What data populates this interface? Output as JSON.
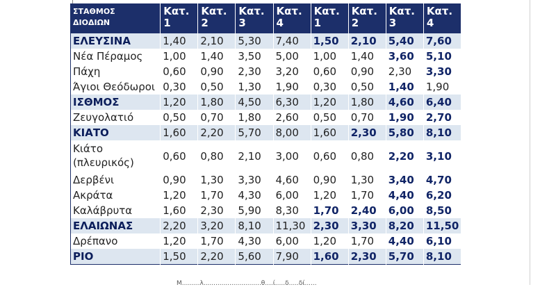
{
  "header": {
    "station_line1": "ΣΤΑΘΜΟΣ",
    "station_line2": "ΔΙΟΔΙΩΝ",
    "categories": [
      {
        "l1": "Κατ.",
        "l2": "1"
      },
      {
        "l1": "Κατ.",
        "l2": "2"
      },
      {
        "l1": "Κατ.",
        "l2": "3"
      },
      {
        "l1": "Κατ.",
        "l2": "4"
      },
      {
        "l1": "Κατ.",
        "l2": "1"
      },
      {
        "l1": "Κατ.",
        "l2": "2"
      },
      {
        "l1": "Κατ.",
        "l2": "3"
      },
      {
        "l1": "Κατ.",
        "l2": "4"
      }
    ]
  },
  "rows": [
    {
      "name": "ΕΛΕΥΣΙΝΑ",
      "major": true,
      "values": [
        "1,40",
        "2,10",
        "5,30",
        "7,40",
        "1,50",
        "2,10",
        "5,40",
        "7,60"
      ],
      "bold": [
        false,
        false,
        false,
        false,
        true,
        true,
        true,
        true
      ]
    },
    {
      "name": "Νέα Πέραμος",
      "major": false,
      "values": [
        "1,00",
        "1,40",
        "3,50",
        "5,00",
        "1,00",
        "1,40",
        "3,60",
        "5,10"
      ],
      "bold": [
        false,
        false,
        false,
        false,
        false,
        false,
        true,
        true
      ]
    },
    {
      "name": "Πάχη",
      "major": false,
      "values": [
        "0,60",
        "0,90",
        "2,30",
        "3,20",
        "0,60",
        "0,90",
        "2,30",
        "3,30"
      ],
      "bold": [
        false,
        false,
        false,
        false,
        false,
        false,
        false,
        true
      ]
    },
    {
      "name": "Άγιοι Θεόδωροι",
      "major": false,
      "values": [
        "0,30",
        "0,50",
        "1,30",
        "1,90",
        "0,30",
        "0,50",
        "1,40",
        "1,90"
      ],
      "bold": [
        false,
        false,
        false,
        false,
        false,
        false,
        true,
        false
      ]
    },
    {
      "name": "ΙΣΘΜΟΣ",
      "major": true,
      "values": [
        "1,20",
        "1,80",
        "4,50",
        "6,30",
        "1,20",
        "1,80",
        "4,60",
        "6,40"
      ],
      "bold": [
        false,
        false,
        false,
        false,
        false,
        false,
        true,
        true
      ]
    },
    {
      "name": "Ζευγολατιό",
      "major": false,
      "values": [
        "0,50",
        "0,70",
        "1,80",
        "2,60",
        "0,50",
        "0,70",
        "1,90",
        "2,70"
      ],
      "bold": [
        false,
        false,
        false,
        false,
        false,
        false,
        true,
        true
      ]
    },
    {
      "name": "ΚΙΑΤΟ",
      "major": true,
      "values": [
        "1,60",
        "2,20",
        "5,70",
        "8,00",
        "1,60",
        "2,30",
        "5,80",
        "8,10"
      ],
      "bold": [
        false,
        false,
        false,
        false,
        false,
        true,
        true,
        true
      ]
    },
    {
      "name": "Κιάτο (πλευρικός)",
      "major": false,
      "tall": true,
      "values": [
        "0,60",
        "0,80",
        "2,10",
        "3,00",
        "0,60",
        "0,80",
        "2,20",
        "3,10"
      ],
      "bold": [
        false,
        false,
        false,
        false,
        false,
        false,
        true,
        true
      ]
    },
    {
      "name": "Δερβένι",
      "major": false,
      "values": [
        "0,90",
        "1,30",
        "3,30",
        "4,60",
        "0,90",
        "1,30",
        "3,40",
        "4,70"
      ],
      "bold": [
        false,
        false,
        false,
        false,
        false,
        false,
        true,
        true
      ]
    },
    {
      "name": "Ακράτα",
      "major": false,
      "values": [
        "1,20",
        "1,70",
        "4,30",
        "6,00",
        "1,20",
        "1,70",
        "4,40",
        "6,20"
      ],
      "bold": [
        false,
        false,
        false,
        false,
        false,
        false,
        true,
        true
      ]
    },
    {
      "name": "Καλάβρυτα",
      "major": false,
      "values": [
        "1,60",
        "2,30",
        "5,90",
        "8,30",
        "1,70",
        "2,40",
        "6,00",
        "8,50"
      ],
      "bold": [
        false,
        false,
        false,
        false,
        true,
        true,
        true,
        true
      ]
    },
    {
      "name": "ΕΛΑΙΩΝΑΣ",
      "major": true,
      "values": [
        "2,20",
        "3,20",
        "8,10",
        "11,30",
        "2,30",
        "3,30",
        "8,20",
        "11,50"
      ],
      "bold": [
        false,
        false,
        false,
        false,
        true,
        true,
        true,
        true
      ]
    },
    {
      "name": "Δρέπανο",
      "major": false,
      "values": [
        "1,20",
        "1,70",
        "4,30",
        "6,00",
        "1,20",
        "1,70",
        "4,40",
        "6,10"
      ],
      "bold": [
        false,
        false,
        false,
        false,
        false,
        false,
        true,
        true
      ]
    },
    {
      "name": "ΡΙΟ",
      "major": true,
      "values": [
        "1,50",
        "2,20",
        "5,60",
        "7,90",
        "1,60",
        "2,30",
        "5,70",
        "8,10"
      ],
      "bold": [
        false,
        false,
        false,
        false,
        true,
        true,
        true,
        true
      ]
    }
  ],
  "footnote": "Μ.........λ.............................θ....ί.....δ.....δί......"
}
